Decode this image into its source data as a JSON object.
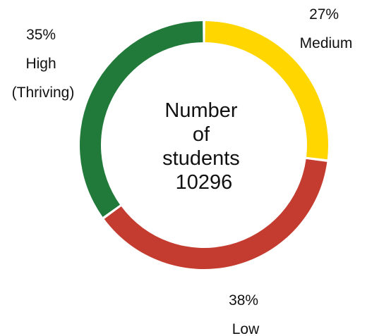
{
  "chart_data": {
    "type": "pie",
    "variant": "donut",
    "center_label": [
      "Number",
      "of",
      "students",
      "10296"
    ],
    "total": 10296,
    "slices": [
      {
        "name": "Medium",
        "value": 27,
        "label": "27%",
        "label_lines": [
          "27%",
          "Medium"
        ],
        "color": "#FFD600"
      },
      {
        "name": "Low",
        "value": 38,
        "label": "38%",
        "label_lines": [
          "38%",
          "Low"
        ],
        "color": "#C43C2F"
      },
      {
        "name": "High (Thriving)",
        "value": 35,
        "label": "35%",
        "label_lines": [
          "35%",
          "High",
          "(Thriving)"
        ],
        "color": "#217A3A"
      }
    ],
    "start": "top",
    "direction": "clockwise"
  }
}
